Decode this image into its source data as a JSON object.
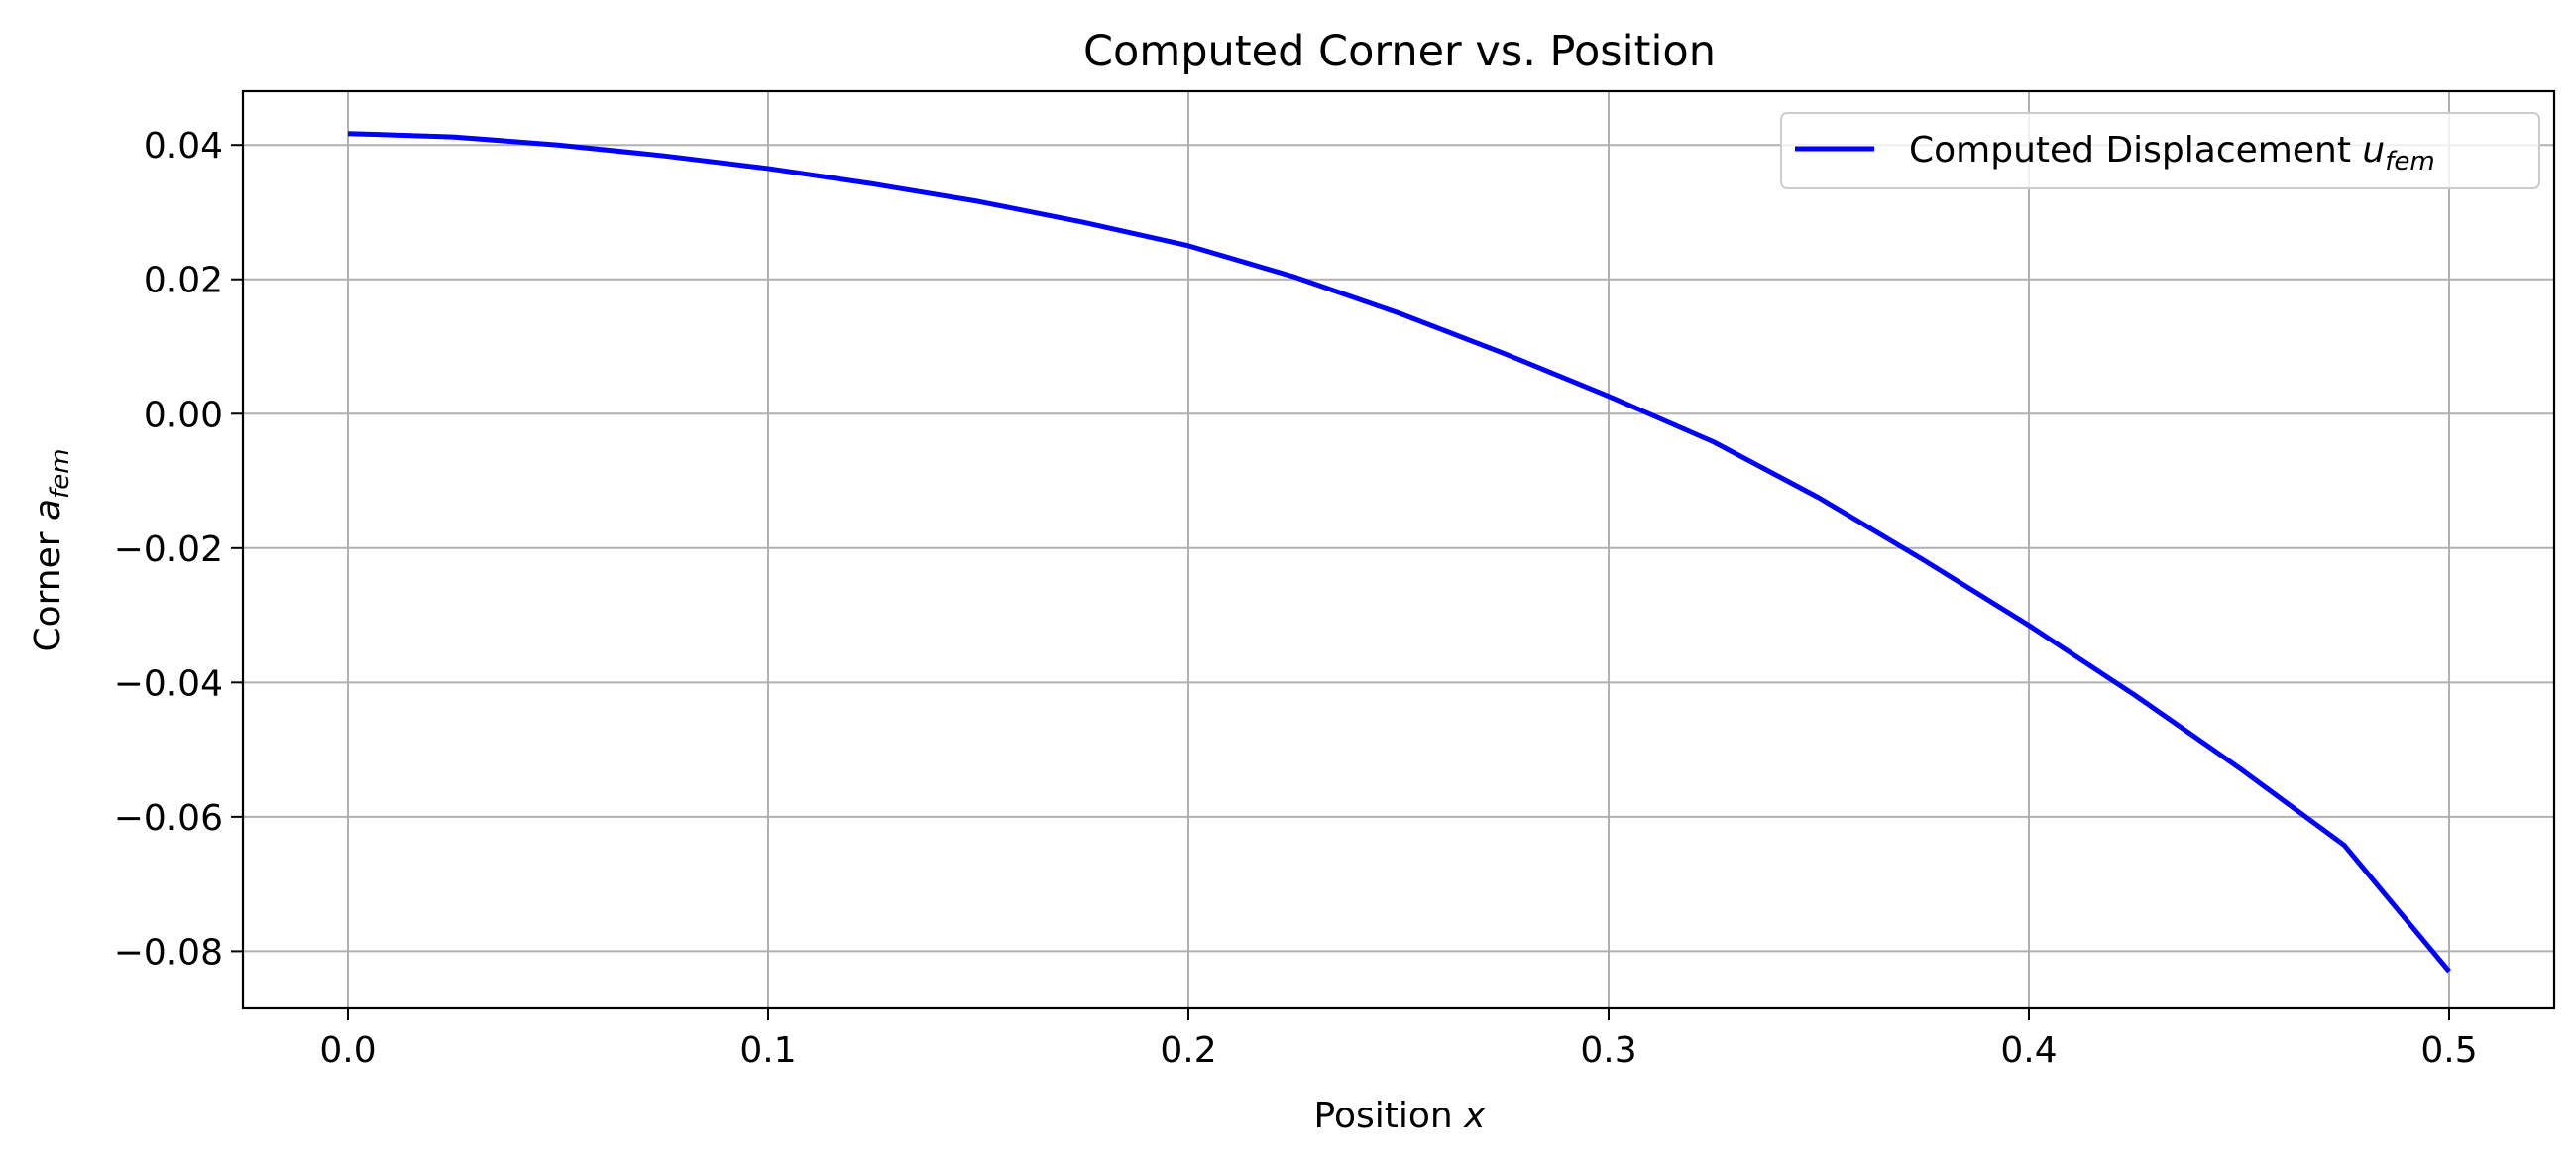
{
  "chart_data": {
    "type": "line",
    "title": "Computed Corner vs. Position",
    "xlabel": {
      "text": "Position ",
      "math": "x"
    },
    "ylabel": {
      "text": "Corner ",
      "math": "a",
      "sub": "fem"
    },
    "xlim": [
      -0.025,
      0.525
    ],
    "ylim": [
      -0.0885,
      0.048
    ],
    "xticks": [
      0.0,
      0.1,
      0.2,
      0.3,
      0.4,
      0.5
    ],
    "xtick_labels": [
      "0.0",
      "0.1",
      "0.2",
      "0.3",
      "0.4",
      "0.5"
    ],
    "yticks": [
      0.04,
      0.02,
      0.0,
      -0.02,
      -0.04,
      -0.06,
      -0.08
    ],
    "ytick_labels": [
      "0.04",
      "0.02",
      "0.00",
      "−0.02",
      "−0.04",
      "−0.06",
      "−0.08"
    ],
    "grid": true,
    "legend": {
      "placement": "upper-right"
    },
    "series": [
      {
        "name": "Computed Displacement ",
        "name_math": "u",
        "name_sub": "fem",
        "color": "#0000ff",
        "x": [
          0.0,
          0.025,
          0.05,
          0.075,
          0.1,
          0.125,
          0.15,
          0.175,
          0.2,
          0.225,
          0.25,
          0.275,
          0.3,
          0.325,
          0.35,
          0.375,
          0.4,
          0.425,
          0.45,
          0.475,
          0.5
        ],
        "y": [
          0.0417,
          0.0412,
          0.04,
          0.0384,
          0.0365,
          0.0342,
          0.0316,
          0.0285,
          0.025,
          0.0204,
          0.015,
          0.009,
          0.0026,
          -0.0042,
          -0.0125,
          -0.0218,
          -0.0315,
          -0.0418,
          -0.0527,
          -0.0642,
          -0.083
        ]
      }
    ]
  }
}
